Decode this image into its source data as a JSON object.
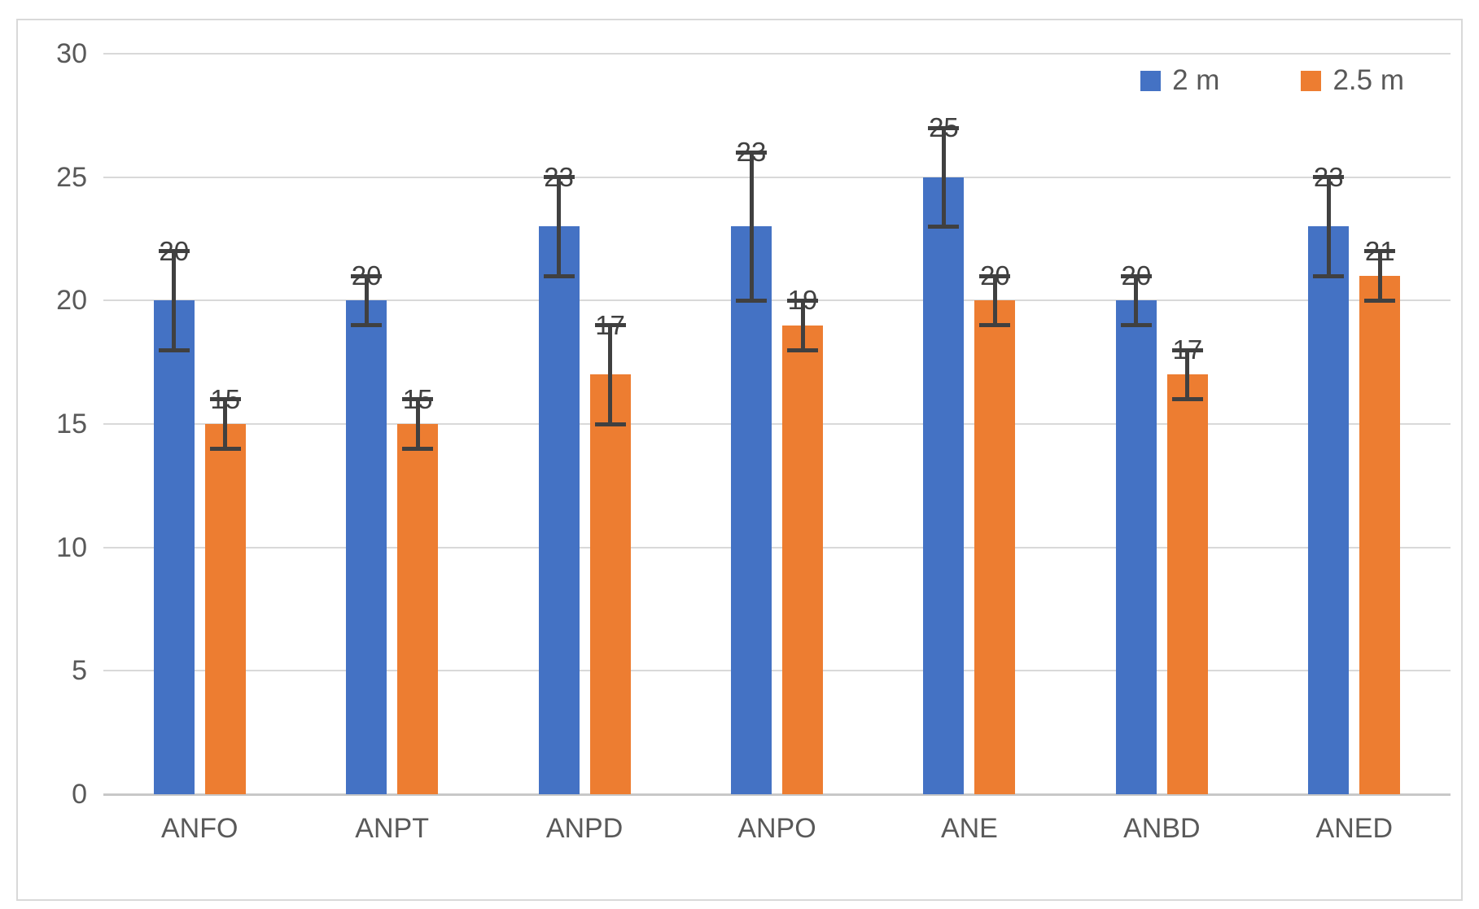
{
  "chart_data": {
    "type": "bar",
    "title": "",
    "xlabel": "",
    "ylabel": "",
    "categories": [
      "ANFO",
      "ANPT",
      "ANPD",
      "ANPO",
      "ANE",
      "ANBD",
      "ANED"
    ],
    "series": [
      {
        "name": "2 m",
        "color": "#4472C4",
        "values": [
          20,
          20,
          23,
          23,
          25,
          20,
          23
        ],
        "error_low": [
          18,
          19,
          21,
          20,
          23,
          19,
          21
        ],
        "error_high": [
          22,
          21,
          25,
          26,
          27,
          21,
          25
        ]
      },
      {
        "name": "2.5 m",
        "color": "#ED7D31",
        "values": [
          15,
          15,
          17,
          19,
          20,
          17,
          21
        ],
        "error_low": [
          14,
          14,
          15,
          18,
          19,
          16,
          20
        ],
        "error_high": [
          16,
          16,
          19,
          20,
          21,
          18,
          22
        ]
      }
    ],
    "ylim": [
      0,
      30
    ],
    "yticks": [
      0,
      5,
      10,
      15,
      20,
      25,
      30
    ],
    "grid": true,
    "data_labels": true,
    "error_bars": true,
    "legend_position": "top-right"
  },
  "colors": {
    "series_blue": "#4472C4",
    "series_orange": "#ED7D31",
    "gridline": "#D9D9D9",
    "axis_text": "#595959",
    "error_bar": "#404040",
    "frame_border": "#D9D9D9",
    "background": "#FFFFFF"
  },
  "legend": {
    "items": [
      {
        "label": "2 m",
        "color": "#4472C4"
      },
      {
        "label": "2.5 m",
        "color": "#ED7D31"
      }
    ]
  }
}
